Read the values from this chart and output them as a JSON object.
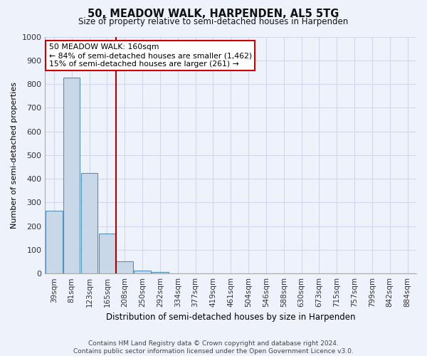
{
  "title1": "50, MEADOW WALK, HARPENDEN, AL5 5TG",
  "title2": "Size of property relative to semi-detached houses in Harpenden",
  "xlabel": "Distribution of semi-detached houses by size in Harpenden",
  "ylabel": "Number of semi-detached properties",
  "categories": [
    "39sqm",
    "81sqm",
    "123sqm",
    "165sqm",
    "208sqm",
    "250sqm",
    "292sqm",
    "334sqm",
    "377sqm",
    "419sqm",
    "461sqm",
    "504sqm",
    "546sqm",
    "588sqm",
    "630sqm",
    "673sqm",
    "715sqm",
    "757sqm",
    "799sqm",
    "842sqm",
    "884sqm"
  ],
  "values": [
    265,
    826,
    423,
    168,
    52,
    13,
    8,
    0,
    0,
    0,
    0,
    0,
    0,
    0,
    0,
    0,
    0,
    0,
    0,
    0,
    0
  ],
  "ylim": [
    0,
    1000
  ],
  "bar_color": "#c8d8e8",
  "bar_edge_color": "#5590b8",
  "property_line_x": 3.5,
  "property_sqm": "160sqm",
  "pct_smaller": 84,
  "count_smaller": 1462,
  "pct_larger": 15,
  "count_larger": 261,
  "annotation_box_color": "#ffffff",
  "annotation_box_edge": "#cc0000",
  "vline_color": "#aa0000",
  "grid_color": "#d0d8ec",
  "bg_color": "#eef2fb",
  "footer_text": "Contains HM Land Registry data © Crown copyright and database right 2024.\nContains public sector information licensed under the Open Government Licence v3.0."
}
